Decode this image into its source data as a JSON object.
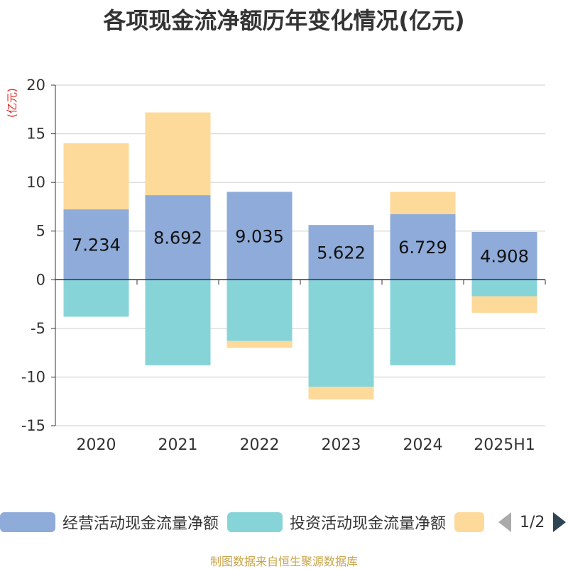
{
  "title": "各项现金流净额历年变化情况(亿元)",
  "source": "制图数据来自恒生聚源数据库",
  "legend": {
    "items": [
      {
        "label": "经营活动现金流量净额",
        "color": "#8eabd9"
      },
      {
        "label": "投资活动现金流量净额",
        "color": "#87d4d8"
      },
      {
        "label": "",
        "color": "#fdd99a"
      }
    ],
    "page": "1/2"
  },
  "chart_data": {
    "type": "bar",
    "stacked": true,
    "categories": [
      "2020",
      "2021",
      "2022",
      "2023",
      "2024",
      "2025H1"
    ],
    "ylabel": "(亿元)",
    "ylim": [
      -15,
      20
    ],
    "yticks": [
      20,
      15,
      10,
      5,
      0,
      -5,
      -10,
      -15
    ],
    "grid": true,
    "series": [
      {
        "name": "经营活动现金流量净额",
        "color": "#8eabd9",
        "values": [
          7.234,
          8.692,
          9.035,
          5.622,
          6.729,
          4.908
        ],
        "labels": [
          "7.234",
          "8.692",
          "9.035",
          "5.622",
          "6.729",
          "4.908"
        ]
      },
      {
        "name": "投资活动现金流量净额",
        "color": "#87d4d8",
        "values": [
          -3.8,
          -8.8,
          -6.3,
          -11.0,
          -8.8,
          -1.7
        ]
      },
      {
        "color": "#fdd99a",
        "values": [
          6.8,
          8.5,
          -0.7,
          -1.3,
          2.3,
          -1.7
        ]
      }
    ]
  }
}
